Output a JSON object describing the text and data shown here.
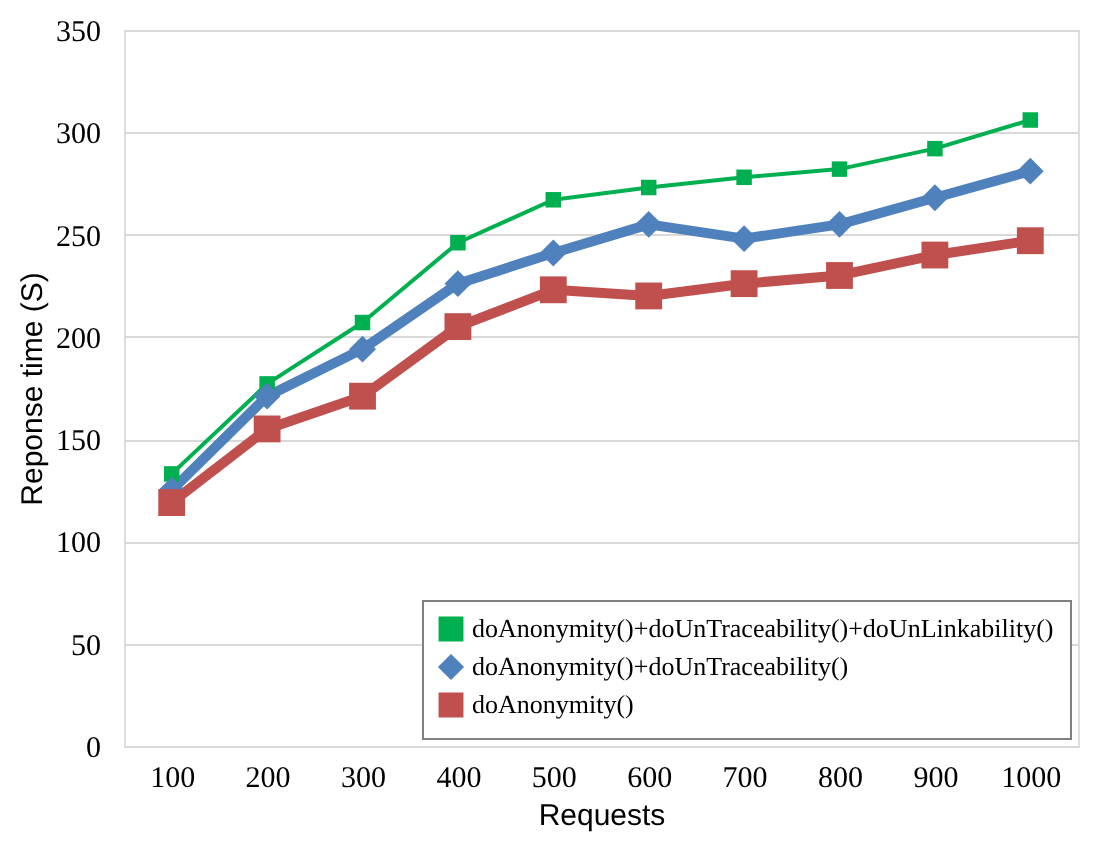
{
  "chart_data": {
    "type": "line",
    "xlabel": "Requests",
    "ylabel": "Reponse time (S)",
    "categories": [
      "100",
      "200",
      "300",
      "400",
      "500",
      "600",
      "700",
      "800",
      "900",
      "1000"
    ],
    "series": [
      {
        "name": "doAnonymity()+doUnTraceability()+doUnLinkability()",
        "color": "#00b050",
        "marker": "square",
        "values": [
          133,
          177,
          207,
          246,
          267,
          273,
          278,
          282,
          292,
          306
        ]
      },
      {
        "name": "doAnonymity()+doUnTraceability()",
        "color": "#4f81bd",
        "marker": "diamond",
        "values": [
          125,
          171,
          194,
          226,
          241,
          255,
          248,
          255,
          268,
          281
        ]
      },
      {
        "name": "doAnonymity()",
        "color": "#c0504d",
        "marker": "square",
        "values": [
          119,
          155,
          171,
          205,
          223,
          220,
          226,
          230,
          240,
          247
        ]
      }
    ],
    "ylim": [
      0,
      350
    ],
    "yticks": [
      0,
      50,
      100,
      150,
      200,
      250,
      300,
      350
    ],
    "grid": "y",
    "legend": "bottom right",
    "line_style": "solid"
  }
}
